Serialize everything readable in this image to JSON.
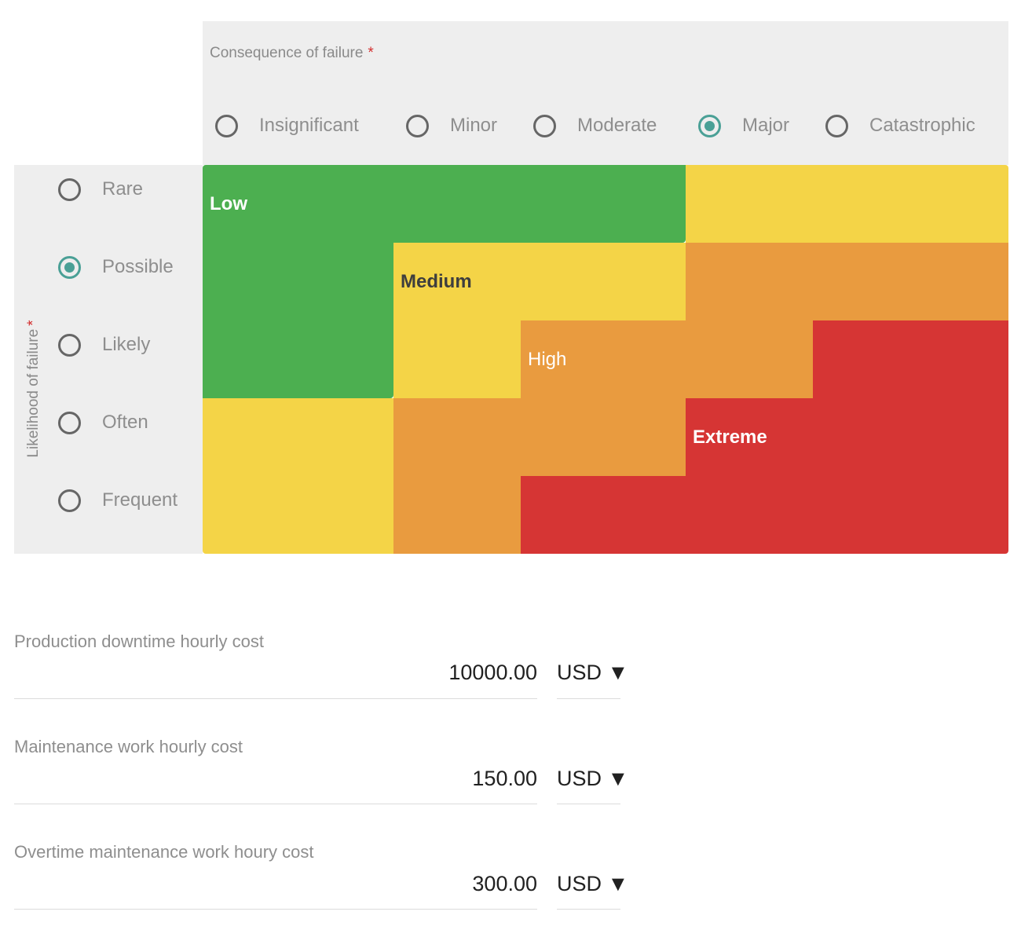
{
  "consequence": {
    "label": "Consequence of failure",
    "required_mark": "*",
    "options": [
      "Insignificant",
      "Minor",
      "Moderate",
      "Major",
      "Catastrophic"
    ],
    "selected": "Major"
  },
  "likelihood": {
    "label": "Likelihood of failure",
    "required_mark": "*",
    "options": [
      "Rare",
      "Possible",
      "Likely",
      "Often",
      "Frequent"
    ],
    "selected": "Possible"
  },
  "matrix": {
    "zones": {
      "low": "Low",
      "medium": "Medium",
      "high": "High",
      "extreme": "Extreme"
    },
    "colors": {
      "low": "#4caf50",
      "medium": "#f4d447",
      "high": "#e99b3f",
      "extreme": "#d63534"
    }
  },
  "costs": [
    {
      "label": "Production downtime hourly cost",
      "value": "10000.00",
      "currency": "USD ▼"
    },
    {
      "label": "Maintenance work hourly cost",
      "value": "150.00",
      "currency": "USD ▼"
    },
    {
      "label": "Overtime maintenance work houry cost",
      "value": "300.00",
      "currency": "USD ▼"
    }
  ]
}
